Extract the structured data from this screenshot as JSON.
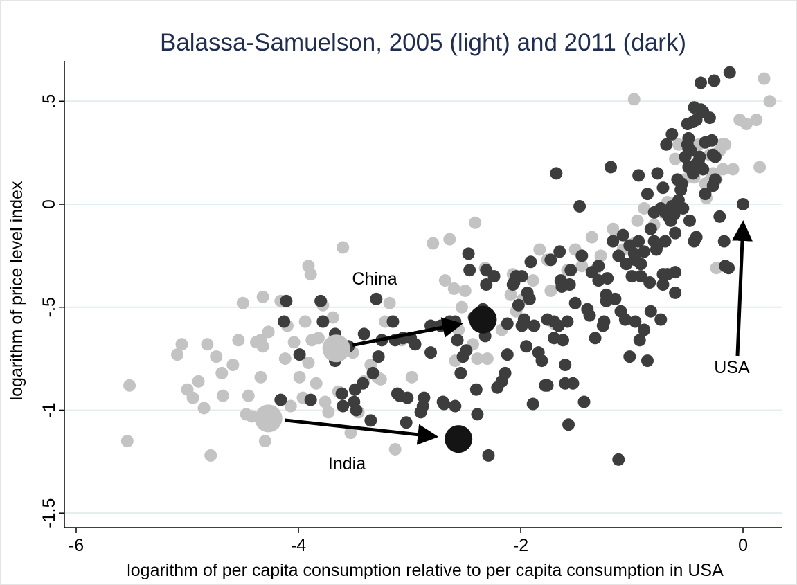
{
  "chart_data": {
    "type": "scatter",
    "title": "Balassa-Samuelson, 2005 (light) and 2011 (dark)",
    "x_label": "logarithm of per capita consumption relative to per capita consumption in USA",
    "y_label": "logarithm of price level index",
    "xlim": [
      -6.106,
      0.355
    ],
    "ylim": [
      -1.57,
      0.696
    ],
    "xticks": [
      -6,
      -4,
      -2,
      0
    ],
    "yticks": [
      {
        "value": -1.5,
        "label": "-1.5"
      },
      {
        "value": -1,
        "label": "-1"
      },
      {
        "value": -0.5,
        "label": "-.5"
      },
      {
        "value": 0,
        "label": "0"
      },
      {
        "value": 0.5,
        "label": ".5"
      }
    ],
    "grid": true,
    "series": [
      {
        "color": "#c3c3c3",
        "x": [
          -5.52,
          -5.54,
          -5.09,
          -5.05,
          -5.0,
          -4.95,
          -4.9,
          -4.85,
          -4.79,
          -4.82,
          -4.74,
          -4.69,
          -4.68,
          -4.59,
          -4.54,
          -4.5,
          -4.45,
          -4.47,
          -4.42,
          -4.38,
          -4.34,
          -4.32,
          -4.34,
          -4.32,
          -4.3,
          -4.27,
          -4.16,
          -4.12,
          -4.1,
          -4.07,
          -4.04,
          -3.99,
          -3.96,
          -3.94,
          -3.91,
          -3.88,
          -3.89,
          -3.91,
          -3.84,
          -3.82,
          -3.78,
          -3.76,
          -3.73,
          -3.69,
          -3.64,
          -3.6,
          -3.53,
          -3.51,
          -3.46,
          -3.41,
          -3.35,
          -3.29,
          -3.26,
          -3.22,
          -3.18,
          -3.13,
          -3.07,
          -2.98,
          -2.79,
          -2.68,
          -2.64,
          -2.6,
          -2.59,
          -2.57,
          -2.56,
          -2.53,
          -2.5,
          -2.41,
          -2.43,
          -2.39,
          -2.32,
          -2.3,
          -2.24,
          -2.17,
          -2.09,
          -2.07,
          -2.04,
          -1.98,
          -1.89,
          -1.83,
          -1.76,
          -1.73,
          -1.7,
          -1.64,
          -1.58,
          -1.51,
          -1.45,
          -1.36,
          -1.33,
          -1.28,
          -1.17,
          -1.14,
          -1.08,
          -0.98,
          -0.95,
          -0.89,
          -0.8,
          -0.72,
          -0.68,
          -0.65,
          -0.61,
          -0.58,
          -0.53,
          -0.48,
          -0.44,
          -0.4,
          -0.3,
          -0.29,
          -0.27,
          -0.24,
          -0.21,
          -0.33,
          -0.24,
          -0.19,
          -0.16,
          -0.09,
          -0.03,
          0.03,
          0.12,
          0.15,
          0.24,
          0.19,
          -0.98,
          -0.18,
          -0.34
        ],
        "y": [
          -0.88,
          -1.15,
          -0.73,
          -0.68,
          -0.9,
          -0.94,
          -0.86,
          -0.99,
          -1.22,
          -0.68,
          -0.74,
          -0.82,
          -0.93,
          -0.78,
          -0.66,
          -0.48,
          -0.93,
          -1.02,
          -1.03,
          -0.67,
          -0.66,
          -0.45,
          -0.84,
          -0.69,
          -1.15,
          -0.62,
          -0.47,
          -0.75,
          -0.59,
          -0.98,
          -0.67,
          -0.84,
          -0.94,
          -0.57,
          -0.77,
          -0.66,
          -0.34,
          -0.3,
          -0.87,
          -0.65,
          -0.49,
          -0.96,
          -1.01,
          -0.55,
          -0.91,
          -0.21,
          -1.11,
          -0.72,
          -1.01,
          -0.86,
          -0.78,
          -0.84,
          -0.85,
          -0.57,
          -0.48,
          -1.19,
          -0.66,
          -0.84,
          -0.19,
          -0.37,
          -0.17,
          -0.41,
          -0.76,
          -0.66,
          -0.61,
          -0.5,
          -0.42,
          -0.09,
          -0.68,
          -0.75,
          -0.31,
          -0.75,
          -0.35,
          -0.61,
          -0.44,
          -0.34,
          -0.52,
          -0.46,
          -0.37,
          -0.22,
          -0.27,
          -0.42,
          -0.58,
          -0.38,
          -0.32,
          -0.22,
          -0.3,
          -0.16,
          -0.32,
          -0.25,
          -0.12,
          -0.15,
          -0.22,
          -0.19,
          -0.08,
          -0.02,
          -0.1,
          -0.04,
          0.01,
          -0.03,
          0.22,
          0.29,
          0.12,
          0.17,
          0.13,
          0.29,
          0.24,
          0.12,
          0.15,
          0.12,
          0.26,
          0.03,
          -0.31,
          0.29,
          0.29,
          0.17,
          0.41,
          0.39,
          0.41,
          0.18,
          0.5,
          0.61,
          0.51,
          0.17,
          0.1
        ]
      },
      {
        "color": "#3d3d3d",
        "x": [
          -4.11,
          -4.13,
          -3.99,
          -3.89,
          -4.16,
          -3.8,
          -3.78,
          -3.67,
          -3.63,
          -3.67,
          -3.61,
          -3.6,
          -3.55,
          -3.5,
          -3.49,
          -3.48,
          -3.42,
          -3.41,
          -3.35,
          -3.33,
          -3.3,
          -3.28,
          -3.25,
          -3.15,
          -3.13,
          -3.11,
          -3.09,
          -3.06,
          -3.03,
          -3.02,
          -2.99,
          -2.95,
          -2.9,
          -2.88,
          -2.87,
          -2.81,
          -2.81,
          -2.7,
          -2.72,
          -2.69,
          -2.64,
          -2.59,
          -2.59,
          -2.54,
          -2.57,
          -2.52,
          -2.49,
          -2.47,
          -2.46,
          -2.42,
          -2.4,
          -2.39,
          -2.37,
          -2.34,
          -2.32,
          -2.31,
          -2.31,
          -2.29,
          -2.24,
          -2.21,
          -2.17,
          -2.14,
          -2.12,
          -2.12,
          -2.07,
          -2.06,
          -2.04,
          -2.02,
          -1.99,
          -1.99,
          -1.97,
          -1.95,
          -1.94,
          -1.92,
          -1.89,
          -1.91,
          -1.88,
          -1.84,
          -1.81,
          -1.78,
          -1.76,
          -1.76,
          -1.73,
          -1.7,
          -1.65,
          -1.64,
          -1.62,
          -1.6,
          -1.58,
          -1.56,
          -1.55,
          -1.53,
          -1.7,
          -1.68,
          -1.66,
          -1.63,
          -1.6,
          -1.57,
          -1.51,
          -1.47,
          -1.45,
          -1.43,
          -1.4,
          -1.38,
          -1.36,
          -1.33,
          -1.3,
          -1.3,
          -1.26,
          -1.25,
          -1.23,
          -1.23,
          -1.22,
          -1.19,
          -1.17,
          -1.15,
          -1.12,
          -1.12,
          -1.1,
          -1.08,
          -1.06,
          -1.05,
          -1.02,
          -1.02,
          -1.0,
          -0.98,
          -0.94,
          -0.94,
          -0.92,
          -0.89,
          -0.86,
          -0.83,
          -0.8,
          -0.77,
          -0.74,
          -0.72,
          -0.7,
          -0.67,
          -0.65,
          -0.64,
          -0.62,
          -0.61,
          -0.58,
          -0.55,
          -0.52,
          -0.5,
          -0.49,
          -0.47,
          -0.45,
          -0.44,
          -0.42,
          -0.39,
          -0.4,
          -0.36,
          -0.34,
          -0.3,
          -0.28,
          -0.27,
          -0.25,
          -0.21,
          -0.16,
          -0.13,
          -0.12,
          -0.26,
          -0.38,
          -0.43,
          -0.5,
          -0.56,
          -0.59,
          -0.61,
          -0.68,
          -0.74,
          -0.8,
          -0.86,
          -0.84,
          -0.72,
          -0.7,
          -0.69,
          -0.64,
          -0.72,
          -0.45,
          -0.38,
          -0.36,
          -0.42,
          -0.44,
          -0.49,
          -0.49,
          -0.54,
          -0.48,
          -0.61,
          -0.77,
          -0.78,
          -0.83,
          -0.89,
          -0.93,
          -0.97,
          -0.92,
          -0.97,
          -0.27,
          -0.17,
          -0.34,
          -0.25,
          0
        ],
        "y": [
          -0.47,
          -0.57,
          -0.73,
          -0.95,
          -0.95,
          -0.47,
          -0.57,
          -0.63,
          -0.67,
          -0.76,
          -0.92,
          -0.98,
          -0.69,
          -0.96,
          -0.9,
          -1.0,
          -0.87,
          -0.63,
          -1.05,
          -0.82,
          -0.46,
          -0.74,
          -0.66,
          -0.57,
          -0.66,
          -0.92,
          -0.93,
          -0.65,
          -1.06,
          -0.94,
          -0.65,
          -0.68,
          -1.01,
          -0.98,
          -0.94,
          -0.72,
          -0.59,
          -0.96,
          -0.59,
          -0.97,
          -0.57,
          -0.98,
          -0.57,
          -0.82,
          -0.66,
          -0.74,
          -0.71,
          -0.24,
          -0.32,
          -0.55,
          -0.9,
          -1.02,
          -0.58,
          -0.51,
          -0.64,
          -0.39,
          -0.32,
          -1.22,
          -0.35,
          -0.89,
          -0.86,
          -0.82,
          -0.58,
          -0.73,
          -0.39,
          -0.38,
          -0.35,
          -0.49,
          -0.35,
          -0.59,
          -0.56,
          -0.69,
          -0.43,
          -0.46,
          -0.97,
          -0.28,
          -0.59,
          -0.72,
          -0.76,
          -0.88,
          -0.56,
          -0.88,
          -0.27,
          -0.57,
          -0.23,
          -0.37,
          -0.66,
          -0.78,
          -0.57,
          -0.39,
          -0.32,
          -0.87,
          -0.65,
          0.15,
          -0.59,
          -0.4,
          -0.87,
          -1.07,
          -0.48,
          -0.01,
          -0.25,
          -0.96,
          -0.51,
          -0.54,
          -0.33,
          -0.65,
          -0.3,
          -0.37,
          -0.59,
          -0.57,
          -0.44,
          -0.47,
          -0.36,
          0.18,
          -0.18,
          -0.46,
          -1.24,
          -0.25,
          -0.52,
          -0.15,
          -0.56,
          -0.29,
          -0.74,
          -0.2,
          -0.35,
          -0.24,
          0.14,
          -0.18,
          -0.29,
          -0.23,
          -0.76,
          -0.12,
          -0.18,
          0.15,
          -0.02,
          -0.39,
          -0.18,
          -0.06,
          -0.08,
          -0.01,
          -0.05,
          -0.14,
          0.02,
          0.1,
          0.23,
          0.39,
          0.32,
          0.26,
          0.4,
          -0.18,
          -0.16,
          0.23,
          0.21,
          0.17,
          0.05,
          0.42,
          0.31,
          0.24,
          0.23,
          -0.06,
          -0.3,
          -0.31,
          0.64,
          0.6,
          0.59,
          0.19,
          0.29,
          0.07,
          0.12,
          -0.43,
          -0.34,
          -0.56,
          -0.04,
          0.05,
          -0.38,
          -0.34,
          -0.04,
          0.29,
          0.34,
          0.08,
          0.15,
          0.46,
          0.45,
          0.41,
          0.47,
          0.27,
          0.18,
          -0.02,
          -0.08,
          -0.33,
          -0.2,
          -0.22,
          -0.52,
          -0.61,
          -0.66,
          -0.57,
          -0.35,
          -0.27,
          0.09,
          -0.18,
          0.3,
          0.12,
          0
        ]
      }
    ],
    "highlights": [
      {
        "name": "China",
        "x": [
          -3.66,
          -2.34
        ],
        "y": [
          -0.7,
          -0.56
        ],
        "colors": [
          "#c3c3c3",
          "#141414"
        ]
      },
      {
        "name": "India",
        "x": [
          -4.27,
          -2.56
        ],
        "y": [
          -1.04,
          -1.14
        ],
        "colors": [
          "#c3c3c3",
          "#141414"
        ]
      },
      {
        "name": "USA",
        "x": [
          0
        ],
        "y": [
          0
        ]
      }
    ]
  }
}
